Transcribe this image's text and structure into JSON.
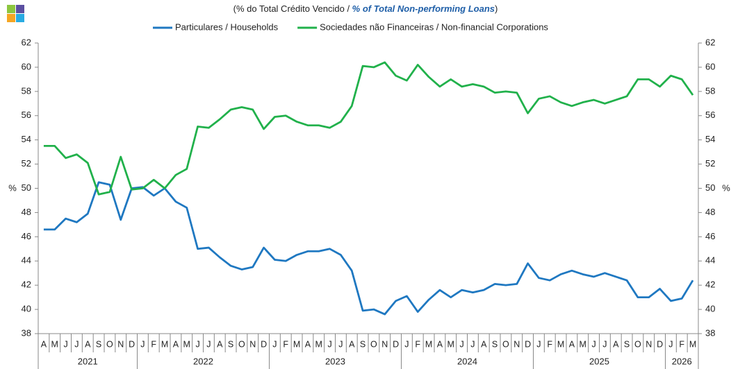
{
  "chart_data": {
    "type": "line",
    "title": [
      "(% do Total  Crédito Vencido / ",
      "% of Total Non-performing Loans",
      ")"
    ],
    "y_label": "%",
    "y2_label": "%",
    "categories": [
      "A",
      "M",
      "J",
      "J",
      "A",
      "S",
      "O",
      "N",
      "D",
      "J",
      "F",
      "M",
      "A",
      "M",
      "J",
      "J",
      "A",
      "S",
      "O",
      "N",
      "D",
      "J",
      "F",
      "M",
      "A",
      "M",
      "J",
      "J",
      "A",
      "S",
      "O",
      "N",
      "D",
      "J",
      "F",
      "M",
      "A",
      "M",
      "J",
      "J",
      "A",
      "S",
      "O",
      "N",
      "D",
      "J",
      "F",
      "M",
      "A",
      "M",
      "J",
      "J",
      "A",
      "S",
      "O",
      "N",
      "D",
      "J",
      "F",
      "M"
    ],
    "years": [
      "2021",
      "2022",
      "2023",
      "2024",
      "2025",
      "2026"
    ],
    "series": [
      {
        "name": "Particulares / Households",
        "color": "#1f78c1",
        "values": [
          46.6,
          46.6,
          47.5,
          47.2,
          47.9,
          50.5,
          50.3,
          47.4,
          50.0,
          50.1,
          49.4,
          50.0,
          48.9,
          48.4,
          45.0,
          45.1,
          44.3,
          43.6,
          43.3,
          43.5,
          45.1,
          44.1,
          44.0,
          44.5,
          44.8,
          44.8,
          45.0,
          44.5,
          43.2,
          39.9,
          40.0,
          39.6,
          40.7,
          41.1,
          39.8,
          40.8,
          41.6,
          41.0,
          41.6,
          41.4,
          41.6,
          42.1,
          42.0,
          42.1,
          43.8,
          42.6,
          42.4,
          42.9,
          43.2,
          42.9,
          42.7,
          43.0,
          42.7,
          42.4,
          41.0,
          41.0,
          41.7,
          40.7,
          40.9,
          42.4
        ]
      },
      {
        "name": "Sociedades não Financeiras / Non-financial Corporations",
        "color": "#21b14b",
        "values": [
          53.5,
          53.5,
          52.5,
          52.8,
          52.1,
          49.5,
          49.7,
          52.6,
          49.9,
          50.0,
          50.7,
          50.0,
          51.1,
          51.6,
          55.1,
          55.0,
          55.7,
          56.5,
          56.7,
          56.5,
          54.9,
          55.9,
          56.0,
          55.5,
          55.2,
          55.2,
          55.0,
          55.5,
          56.8,
          60.1,
          60.0,
          60.4,
          59.3,
          58.9,
          60.2,
          59.2,
          58.4,
          59.0,
          58.4,
          58.6,
          58.4,
          57.9,
          58.0,
          57.9,
          56.2,
          57.4,
          57.6,
          57.1,
          56.8,
          57.1,
          57.3,
          57.0,
          57.3,
          57.6,
          59.0,
          59.0,
          58.4,
          59.3,
          59.0,
          57.7
        ]
      }
    ],
    "ylim": [
      38,
      62
    ],
    "yticks": [
      38,
      40,
      42,
      44,
      46,
      48,
      50,
      52,
      54,
      56,
      58,
      60,
      62
    ],
    "y2lim": [
      38,
      62
    ],
    "y2ticks": [
      38,
      40,
      42,
      44,
      46,
      48,
      50,
      52,
      54,
      56,
      58,
      60,
      62
    ],
    "grid": false
  }
}
